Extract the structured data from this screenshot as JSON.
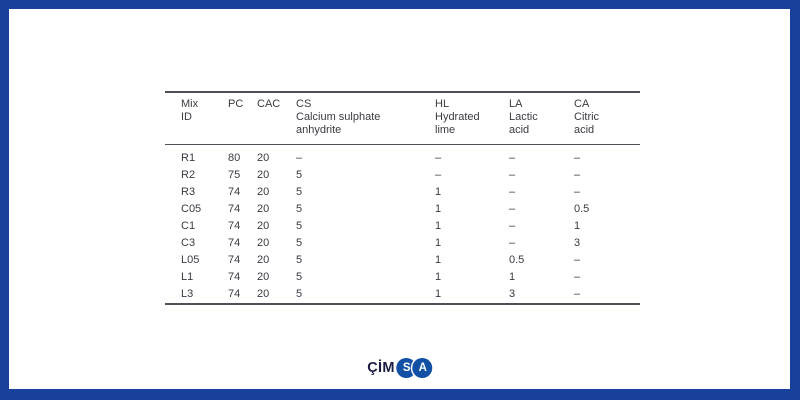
{
  "slide": {
    "frame_color": "#17419b",
    "canvas_color": "#ffffff"
  },
  "table": {
    "rule_color": "#50505a",
    "text_color": "#3a3a42",
    "columns": [
      {
        "abbr": "Mix",
        "name_lines": [
          "ID"
        ]
      },
      {
        "abbr": "PC",
        "name_lines": []
      },
      {
        "abbr": "CAC",
        "name_lines": []
      },
      {
        "abbr": "CS",
        "name_lines": [
          "Calcium sulphate",
          "anhydrite"
        ]
      },
      {
        "abbr": "HL",
        "name_lines": [
          "Hydrated",
          "lime"
        ]
      },
      {
        "abbr": "LA",
        "name_lines": [
          "Lactic",
          "acid"
        ]
      },
      {
        "abbr": "CA",
        "name_lines": [
          "Citric",
          "acid"
        ]
      }
    ],
    "rows": [
      [
        "R1",
        "80",
        "20",
        "–",
        "–",
        "–",
        "–"
      ],
      [
        "R2",
        "75",
        "20",
        "5",
        "–",
        "–",
        "–"
      ],
      [
        "R3",
        "74",
        "20",
        "5",
        "1",
        "–",
        "–"
      ],
      [
        "C05",
        "74",
        "20",
        "5",
        "1",
        "–",
        "0.5"
      ],
      [
        "C1",
        "74",
        "20",
        "5",
        "1",
        "–",
        "1"
      ],
      [
        "C3",
        "74",
        "20",
        "5",
        "1",
        "–",
        "3"
      ],
      [
        "L05",
        "74",
        "20",
        "5",
        "1",
        "0.5",
        "–"
      ],
      [
        "L1",
        "74",
        "20",
        "5",
        "1",
        "1",
        "–"
      ],
      [
        "L3",
        "74",
        "20",
        "5",
        "1",
        "3",
        "–"
      ]
    ]
  },
  "logo": {
    "brand": "ÇİMSA",
    "text": "ÇİM",
    "circle_letters": [
      "S",
      "A"
    ],
    "text_color": "#1b1c44",
    "circle_color": "#1150a5"
  }
}
